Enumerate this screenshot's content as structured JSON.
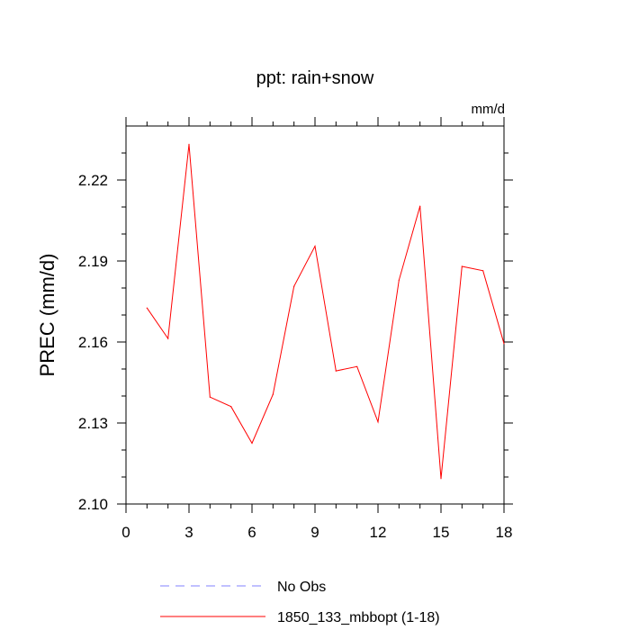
{
  "chart_data": {
    "type": "line",
    "title": "ppt: rain+snow",
    "units": "mm/d",
    "ylabel": "PREC  (mm/d)",
    "xlabel": "",
    "xlim": [
      0,
      18
    ],
    "ylim": [
      2.1,
      2.24
    ],
    "x_ticks": [
      0,
      3,
      6,
      9,
      12,
      15,
      18
    ],
    "x_tick_labels": [
      "0",
      "3",
      "6",
      "9",
      "12",
      "15",
      "18"
    ],
    "y_ticks": [
      2.1,
      2.13,
      2.16,
      2.19,
      2.22
    ],
    "y_tick_labels": [
      "2.10",
      "2.13",
      "2.16",
      "2.19",
      "2.22"
    ],
    "grid": false,
    "legend_position": "bottom",
    "series": [
      {
        "name": "1850_133_mbbopt (1-18)",
        "color": "#ff0000",
        "dash": "solid",
        "x": [
          1,
          2,
          3,
          4,
          5,
          6,
          7,
          8,
          9,
          10,
          11,
          12,
          13,
          14,
          15,
          16,
          17,
          18
        ],
        "values": [
          2.1726,
          2.1613,
          2.2332,
          2.1396,
          2.1361,
          2.1225,
          2.1406,
          2.1806,
          2.1955,
          2.1493,
          2.1509,
          2.1304,
          2.1829,
          2.2103,
          2.1094,
          2.188,
          2.1864,
          2.1594
        ]
      }
    ],
    "legend": [
      {
        "label": "No Obs",
        "color": "#8080ff",
        "dash": "dashed"
      },
      {
        "label": "1850_133_mbbopt (1-18)",
        "color": "#ff0000",
        "dash": "solid"
      }
    ]
  }
}
